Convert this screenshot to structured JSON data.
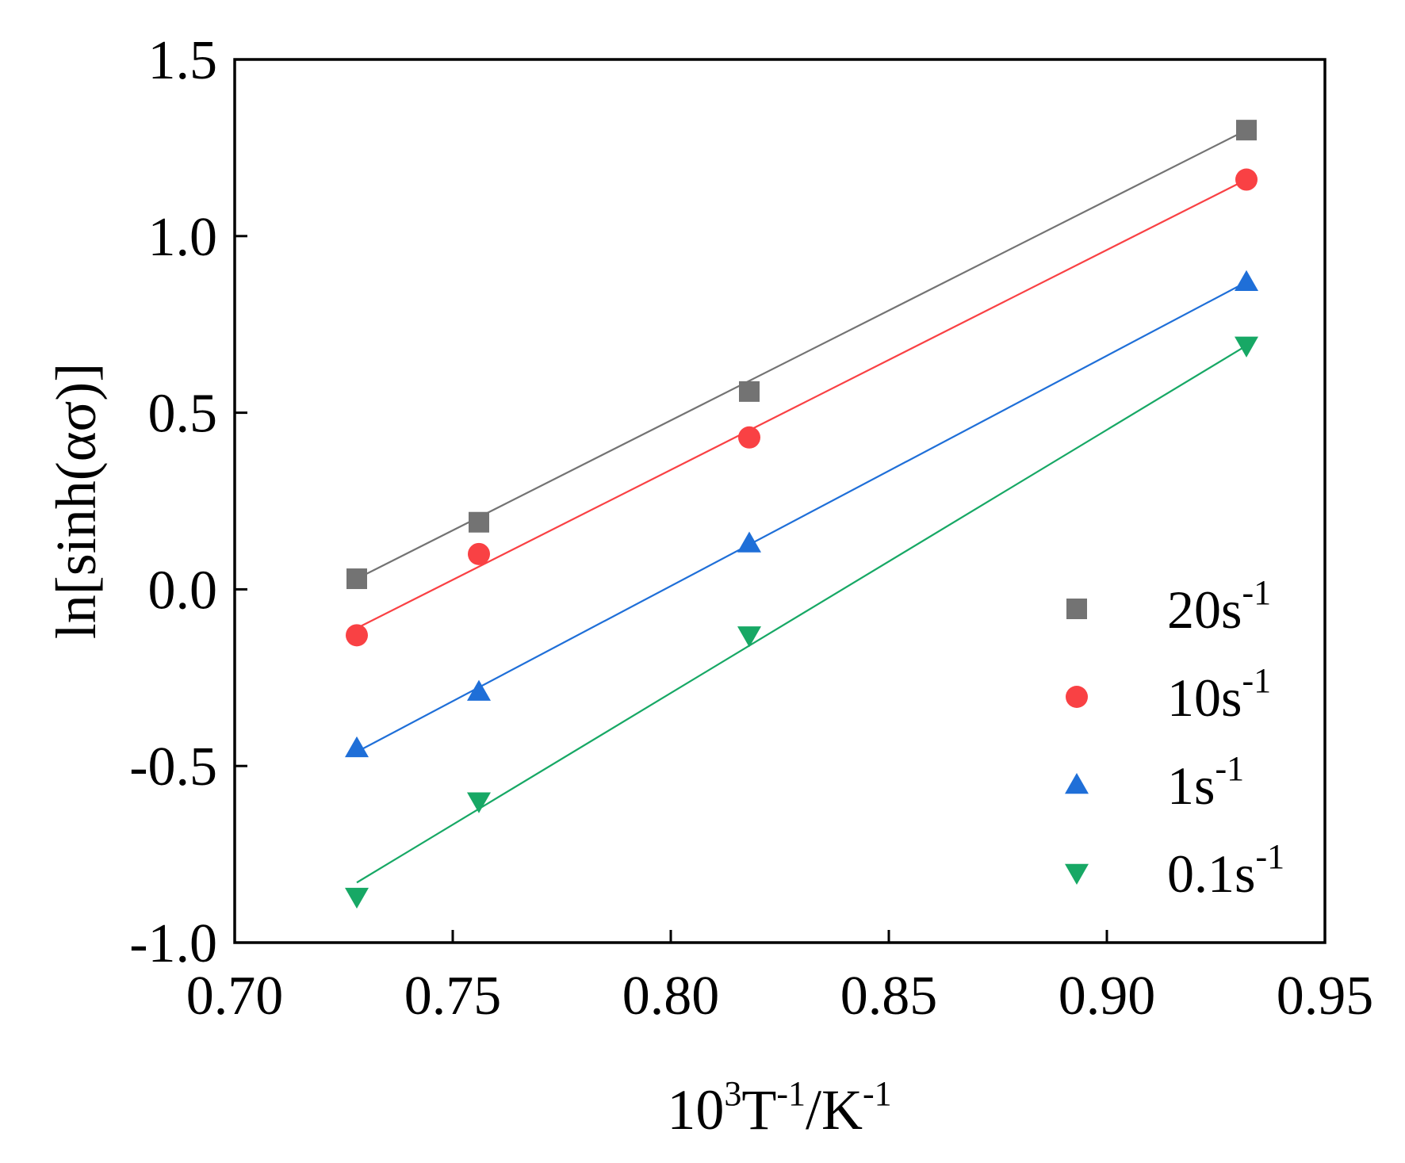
{
  "chart_data": {
    "type": "scatter",
    "title": "",
    "xlabel": {
      "base": "10",
      "exp": "3",
      "mid": "T",
      "mid_exp": "-1",
      "slash": "/K",
      "end_exp": "-1"
    },
    "ylabel": "ln[sinh(ασ)]",
    "xlim": [
      0.7,
      0.95
    ],
    "ylim": [
      -1.0,
      1.5
    ],
    "xticks": [
      0.7,
      0.75,
      0.8,
      0.85,
      0.9,
      0.95
    ],
    "xtick_labels": [
      "0.70",
      "0.75",
      "0.80",
      "0.85",
      "0.90",
      "0.95"
    ],
    "yticks": [
      -1.0,
      -0.5,
      0.0,
      0.5,
      1.0,
      1.5
    ],
    "ytick_labels": [
      "-1.0",
      "-0.5",
      "0.0",
      "0.5",
      "1.0",
      "1.5"
    ],
    "grid": false,
    "legend_position": "bottom-right",
    "series": [
      {
        "name": "20s",
        "exp": "-1",
        "marker": "square",
        "color": "#737373",
        "x": [
          0.728,
          0.756,
          0.818,
          0.932
        ],
        "y": [
          0.03,
          0.19,
          0.56,
          1.3
        ],
        "fit": [
          [
            0.728,
            0.03
          ],
          [
            0.932,
            1.3
          ]
        ]
      },
      {
        "name": "10s",
        "exp": "-1",
        "marker": "circle",
        "color": "#f94144",
        "x": [
          0.728,
          0.756,
          0.818,
          0.932
        ],
        "y": [
          -0.13,
          0.1,
          0.43,
          1.16
        ],
        "fit": [
          [
            0.728,
            -0.11
          ],
          [
            0.932,
            1.16
          ]
        ]
      },
      {
        "name": "1s",
        "exp": "-1",
        "marker": "triangle-up",
        "color": "#1f6fd8",
        "x": [
          0.728,
          0.756,
          0.818,
          0.932
        ],
        "y": [
          -0.45,
          -0.29,
          0.13,
          0.87
        ],
        "fit": [
          [
            0.728,
            -0.46
          ],
          [
            0.932,
            0.87
          ]
        ]
      },
      {
        "name": "0.1s",
        "exp": "-1",
        "marker": "triangle-down",
        "color": "#17a865",
        "x": [
          0.728,
          0.756,
          0.818,
          0.932
        ],
        "y": [
          -0.87,
          -0.6,
          -0.13,
          0.69
        ],
        "fit": [
          [
            0.728,
            -0.83
          ],
          [
            0.932,
            0.69
          ]
        ]
      }
    ]
  }
}
